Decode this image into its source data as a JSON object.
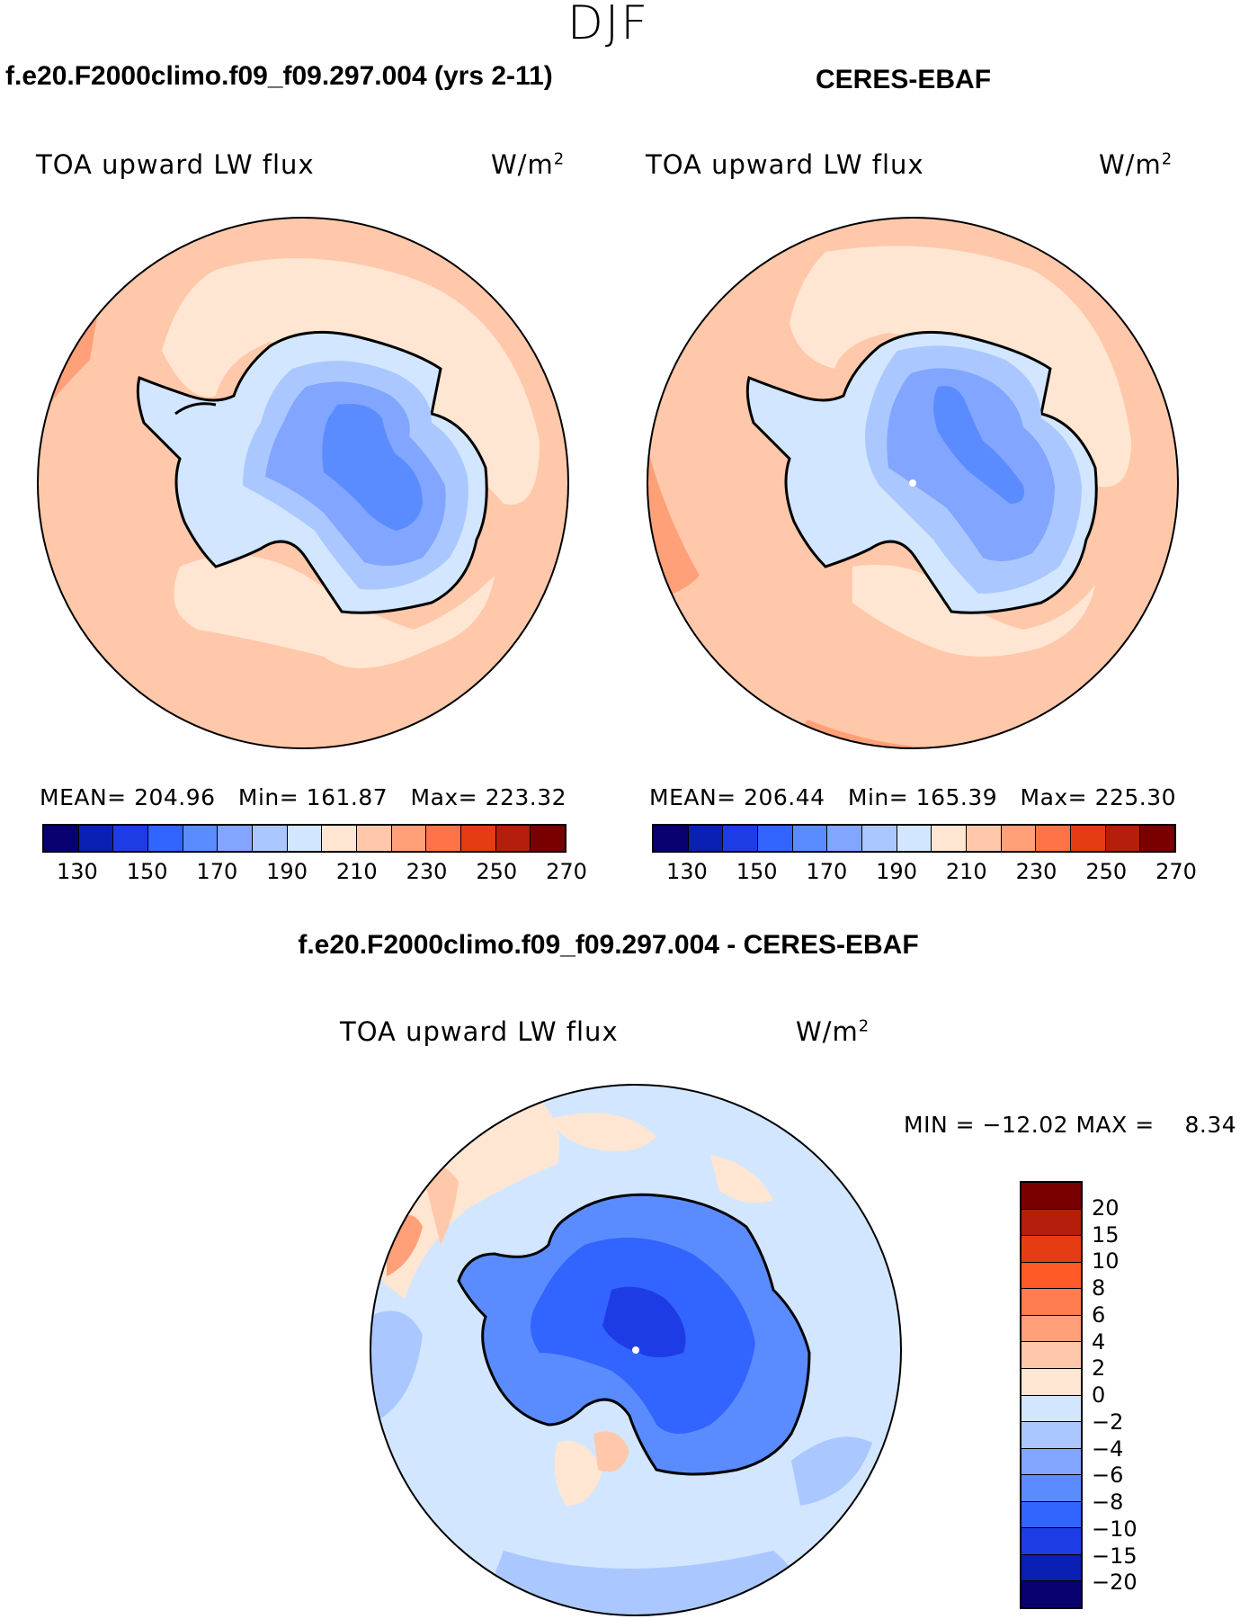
{
  "season": "DJF",
  "panels": {
    "model": {
      "title": "f.e20.F2000climo.f09_f09.297.004 (yrs 2-11)",
      "variable": "TOA upward LW flux",
      "units_base": "W/m",
      "units_exp": "2",
      "mean_label": "MEAN=",
      "mean": "204.96",
      "min_label": "Min=",
      "min": "161.87",
      "max_label": "Max=",
      "max": "223.32"
    },
    "obs": {
      "title": "CERES-EBAF",
      "variable": "TOA upward LW flux",
      "units_base": "W/m",
      "units_exp": "2",
      "mean_label": "MEAN=",
      "mean": "206.44",
      "min_label": "Min=",
      "min": "165.39",
      "max_label": "Max=",
      "max": "225.30"
    },
    "diff": {
      "title": "f.e20.F2000climo.f09_f09.297.004 - CERES-EBAF",
      "variable": "TOA upward LW flux",
      "units_base": "W/m",
      "units_exp": "2",
      "min_label": "MIN =",
      "min": "−12.02",
      "max_label": "MAX =",
      "max": "8.34"
    }
  },
  "colorbar_abs": {
    "colors": [
      "#08006e",
      "#0a1fb4",
      "#1e3ce6",
      "#3264ff",
      "#5a8cff",
      "#82a5ff",
      "#aac8ff",
      "#d2e6ff",
      "#ffe6d2",
      "#ffc8aa",
      "#ffa078",
      "#ff7346",
      "#e63c14",
      "#b41e0a",
      "#780000"
    ],
    "ticks": [
      "130",
      "150",
      "170",
      "190",
      "210",
      "230",
      "250",
      "270"
    ]
  },
  "colorbar_diff": {
    "colors": [
      "#780000",
      "#b41e0a",
      "#e63c14",
      "#ff5a28",
      "#ff7d50",
      "#ffa078",
      "#ffc8aa",
      "#ffe6d2",
      "#d2e6ff",
      "#aac8ff",
      "#82a5ff",
      "#5a8cff",
      "#3264ff",
      "#1e3ce6",
      "#0a1fb4",
      "#08006e"
    ],
    "ticks": [
      "20",
      "15",
      "10",
      "8",
      "6",
      "4",
      "2",
      "0",
      "−2",
      "−4",
      "−6",
      "−8",
      "−10",
      "−15",
      "−20"
    ]
  },
  "chart_data": [
    {
      "type": "heatmap",
      "projection": "south-polar-stereographic",
      "title": "f.e20.F2000climo.f09_f09.297.004 (yrs 2-11)",
      "variable": "TOA upward LW flux",
      "units": "W/m2",
      "mean": 204.96,
      "min": 161.87,
      "max": 223.32,
      "contour_levels": [
        130,
        140,
        150,
        160,
        170,
        180,
        190,
        200,
        210,
        220,
        230,
        240,
        250,
        260,
        270
      ],
      "colorbar_ticks": [
        130,
        150,
        170,
        190,
        210,
        230,
        250,
        270
      ]
    },
    {
      "type": "heatmap",
      "projection": "south-polar-stereographic",
      "title": "CERES-EBAF",
      "variable": "TOA upward LW flux",
      "units": "W/m2",
      "mean": 206.44,
      "min": 165.39,
      "max": 225.3,
      "contour_levels": [
        130,
        140,
        150,
        160,
        170,
        180,
        190,
        200,
        210,
        220,
        230,
        240,
        250,
        260,
        270
      ],
      "colorbar_ticks": [
        130,
        150,
        170,
        190,
        210,
        230,
        250,
        270
      ]
    },
    {
      "type": "heatmap",
      "projection": "south-polar-stereographic",
      "title": "f.e20.F2000climo.f09_f09.297.004 - CERES-EBAF",
      "variable": "TOA upward LW flux",
      "units": "W/m2",
      "min": -12.02,
      "max": 8.34,
      "contour_levels": [
        -20,
        -15,
        -10,
        -8,
        -6,
        -4,
        -2,
        0,
        2,
        4,
        6,
        8,
        10,
        15,
        20
      ],
      "colorbar_ticks": [
        20,
        15,
        10,
        8,
        6,
        4,
        2,
        0,
        -2,
        -4,
        -6,
        -8,
        -10,
        -15,
        -20
      ]
    }
  ]
}
